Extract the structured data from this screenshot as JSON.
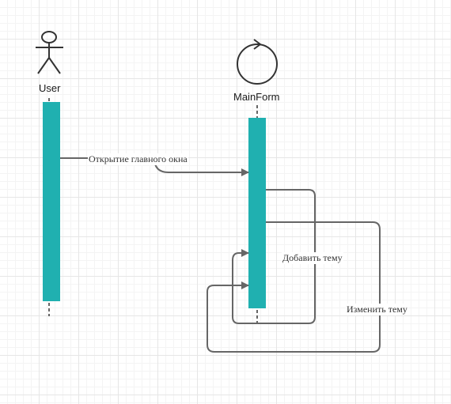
{
  "participants": [
    {
      "id": "user",
      "label": "User",
      "kind": "actor"
    },
    {
      "id": "mainform",
      "label": "MainForm",
      "kind": "control"
    }
  ],
  "messages": [
    {
      "id": "open-main-window",
      "from": "user",
      "to": "mainform",
      "label": "Открытие главного окна"
    },
    {
      "id": "add-topic",
      "from": "mainform",
      "to": "mainform",
      "label": "Добавить тему"
    },
    {
      "id": "edit-topic",
      "from": "mainform",
      "to": "mainform",
      "label": "Изменить тему"
    }
  ],
  "colors": {
    "activation": "#20b0b0",
    "line": "#666666",
    "stroke": "#333333"
  }
}
